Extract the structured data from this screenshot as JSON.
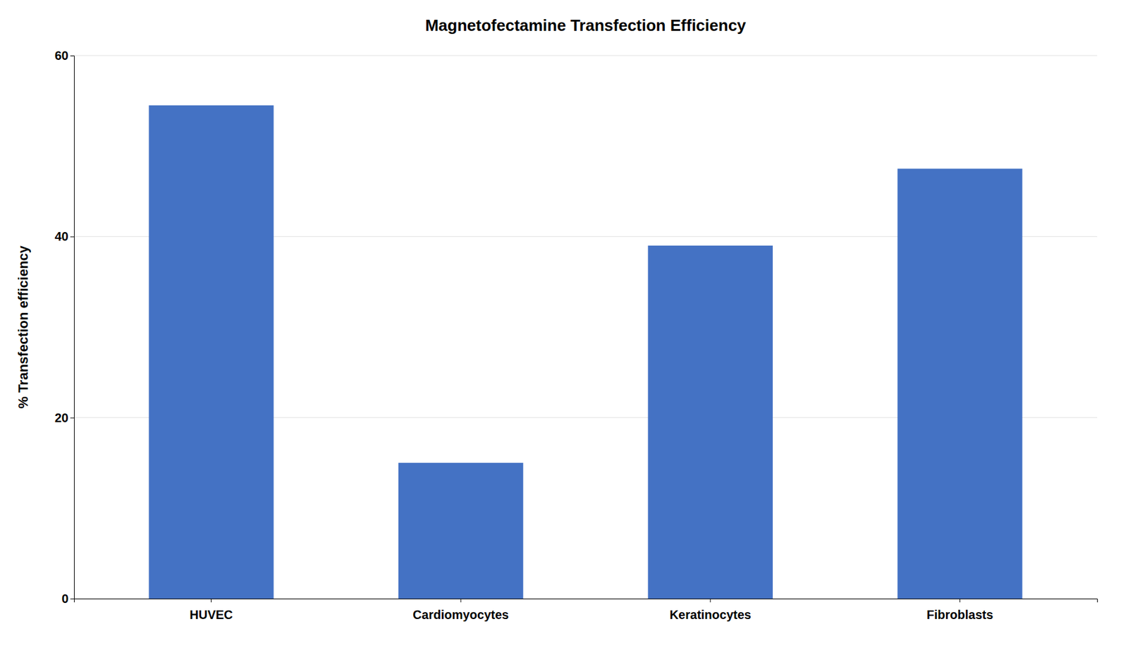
{
  "chart_data": {
    "type": "bar",
    "title": "Magnetofectamine Transfection Efficiency",
    "categories": [
      "HUVEC",
      "Cardiomyocytes",
      "Keratinocytes",
      "Fibroblasts"
    ],
    "values": [
      54.5,
      15.0,
      39.0,
      47.5
    ],
    "color": "#4472C4",
    "ylabel": "% Transfection efficiency",
    "ylim": [
      0,
      60
    ],
    "yticks": [
      0,
      20,
      40,
      60
    ],
    "grid": true
  }
}
